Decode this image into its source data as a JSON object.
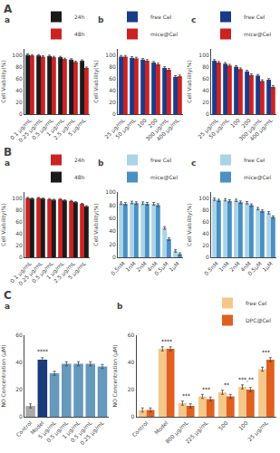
{
  "chart_data": [
    {
      "type": "bar",
      "title": "a",
      "subtitle": "A",
      "categories": [
        "0.1 µg/mL",
        "0.25 µg/mL",
        "0.5 µg/mL",
        "1 µg/mL",
        "2.5 µg/mL",
        "5 µg/mL"
      ],
      "series": [
        {
          "name": "24h",
          "color": "#1a1a1a",
          "values": [
            100,
            99,
            98,
            96,
            92,
            90
          ],
          "errors": [
            1.5,
            1.5,
            1.5,
            1.5,
            1.5,
            1.5
          ]
        },
        {
          "name": "48h",
          "color": "#cc2222",
          "values": [
            99,
            97,
            96,
            93,
            88,
            78
          ],
          "errors": [
            1.5,
            1.5,
            1.5,
            1.5,
            1.5,
            1.5
          ]
        }
      ],
      "ylabel": "Cell Viability(%)",
      "ylim": [
        0,
        110
      ],
      "yticks": [
        0,
        20,
        40,
        60,
        80,
        100
      ],
      "grid": false,
      "legend": "upper right"
    },
    {
      "type": "bar",
      "title": "b",
      "categories": [
        "25 µg/mL",
        "50 µg/mL",
        "100",
        "200",
        "300 µg/mL",
        "400 µg/mL"
      ],
      "series": [
        {
          "name": "free Cel",
          "color": "#1a3a8a",
          "values": [
            97,
            95,
            92,
            87,
            78,
            63
          ],
          "errors": [
            2,
            2,
            2,
            2,
            2,
            2
          ]
        },
        {
          "name": "mice@Cel",
          "color": "#cc2222",
          "values": [
            97,
            94,
            90,
            84,
            75,
            64
          ],
          "errors": [
            2,
            2,
            2,
            2,
            2,
            2
          ]
        }
      ],
      "ylabel": "Cell Viability(%)",
      "ylim": [
        0,
        110
      ],
      "yticks": [
        0,
        20,
        40,
        60,
        80,
        100
      ],
      "grid": false,
      "legend": "upper right"
    },
    {
      "type": "bar",
      "title": "c",
      "categories": [
        "25 µg/mL",
        "50 µg/mL",
        "100",
        "200",
        "300 µg/mL",
        "400 µg/mL"
      ],
      "series": [
        {
          "name": "free Cel",
          "color": "#1a3a8a",
          "values": [
            90,
            85,
            80,
            72,
            65,
            58
          ],
          "errors": [
            2,
            2,
            2,
            2,
            2,
            2
          ]
        },
        {
          "name": "mice@Cel",
          "color": "#cc2222",
          "values": [
            87,
            82,
            76,
            66,
            56,
            46
          ],
          "errors": [
            2,
            2,
            2,
            2,
            2,
            2
          ]
        }
      ],
      "ylabel": "Cell Viability(%)",
      "ylim": [
        0,
        110
      ],
      "yticks": [
        0,
        20,
        40,
        60,
        80,
        100
      ],
      "grid": false,
      "legend": "upper right"
    },
    {
      "type": "bar",
      "title": "a",
      "subtitle": "B",
      "categories": [
        "0.1 µg/mL",
        "0.25 µg/mL",
        "0.5 µg/mL",
        "1 µg/mL",
        "2.5 µg/mL",
        "5 µg/mL"
      ],
      "series": [
        {
          "name": "24h",
          "color": "#cc2222",
          "values": [
            100,
            100,
            98,
            98,
            95,
            90
          ],
          "errors": [
            1,
            1,
            1,
            1,
            1,
            1
          ]
        },
        {
          "name": "48h",
          "color": "#1a1a1a",
          "values": [
            99,
            99,
            97,
            96,
            93,
            86
          ],
          "errors": [
            1,
            1,
            1,
            1,
            1,
            1
          ]
        }
      ],
      "ylabel": "Cell Viability(%)",
      "ylim": [
        0,
        110
      ],
      "yticks": [
        0,
        20,
        40,
        60,
        80,
        100
      ],
      "grid": false,
      "legend": "upper right"
    },
    {
      "type": "bar",
      "title": "b",
      "categories": [
        "0.5nM",
        "1nM",
        "2nM",
        "4nM",
        "0.5µM",
        "1µM"
      ],
      "series": [
        {
          "name": "free Cel",
          "color": "#aad4e8",
          "values": [
            83,
            84,
            83,
            82,
            45,
            10
          ],
          "errors": [
            2,
            2,
            2,
            2,
            2,
            2
          ]
        },
        {
          "name": "mice@Cel",
          "color": "#4a90c4",
          "values": [
            82,
            83,
            82,
            80,
            28,
            5
          ],
          "errors": [
            2,
            2,
            2,
            2,
            2,
            2
          ]
        }
      ],
      "ylabel": "Cell Viability(%)",
      "ylim": [
        0,
        100
      ],
      "yticks": [
        0,
        20,
        40,
        60,
        80,
        100
      ],
      "grid": false,
      "legend": "upper right"
    },
    {
      "type": "bar",
      "title": "c",
      "categories": [
        "0.5nM",
        "1nM",
        "2nM",
        "4nM",
        "0.5µM",
        "1µM"
      ],
      "series": [
        {
          "name": "free Cel",
          "color": "#aad4e8",
          "values": [
            98,
            97,
            96,
            92,
            82,
            75
          ],
          "errors": [
            2,
            2,
            2,
            2,
            2,
            2
          ]
        },
        {
          "name": "mice@Cel",
          "color": "#4a90c4",
          "values": [
            96,
            95,
            93,
            88,
            78,
            68
          ],
          "errors": [
            2,
            2,
            2,
            2,
            2,
            2
          ]
        }
      ],
      "ylabel": "Cell Viability(%)",
      "ylim": [
        0,
        110
      ],
      "yticks": [
        0,
        20,
        40,
        60,
        80,
        100
      ],
      "grid": false,
      "legend": "upper right"
    },
    {
      "type": "bar",
      "title": "a",
      "subtitle": "C",
      "categories": [
        "Control",
        "Model",
        "5 µg/mL",
        "0.5 µg/mL",
        "1 µg/mL",
        "0.5 µg/mL",
        "0.25 µg/mL"
      ],
      "values": [
        8,
        42,
        32,
        39,
        39,
        39,
        37
      ],
      "colors": [
        "#aaaaaa",
        "#1a3a7a",
        "#6699bb",
        "#6699bb",
        "#6699bb",
        "#6699bb",
        "#6699bb"
      ],
      "errors": [
        1.5,
        1.5,
        1.5,
        1.5,
        1.5,
        1.5,
        1.5
      ],
      "annotations": [
        {
          "x": 1,
          "y": 45,
          "text": "****"
        }
      ],
      "ylabel": "NO Concentration (µM)",
      "ylim": [
        0,
        60
      ],
      "yticks": [
        0,
        20,
        40,
        60
      ],
      "grid": false
    },
    {
      "type": "bar",
      "title": "b",
      "categories": [
        "Control",
        "Model",
        "800 µg/mL",
        "225 µg/mL",
        "500",
        "100",
        "25 µg/mL"
      ],
      "series": [
        {
          "name": "free Cel",
          "color": "#f5c88a",
          "values": [
            5,
            50,
            10,
            15,
            18,
            22,
            35
          ],
          "errors": [
            1.5,
            1.5,
            1.5,
            1.5,
            1.5,
            1.5,
            1.5
          ]
        },
        {
          "name": "DPC@Cel",
          "color": "#e06020",
          "values": [
            5,
            50,
            8,
            13,
            15,
            20,
            42
          ],
          "errors": [
            1.5,
            1.5,
            1.5,
            1.5,
            1.5,
            1.5,
            1.5
          ]
        }
      ],
      "annotations": [
        {
          "x": 1,
          "y": 52,
          "text": "****"
        },
        {
          "x": 2,
          "y": 12,
          "text": "***"
        },
        {
          "x": 3,
          "y": 17,
          "text": "***"
        },
        {
          "x": 4,
          "y": 20,
          "text": "**"
        },
        {
          "x": 5,
          "y": 24,
          "text": "***,**"
        },
        {
          "x": 6,
          "y": 44,
          "text": "***"
        }
      ],
      "ylabel": "NO Concentration (µM)",
      "ylim": [
        0,
        60
      ],
      "yticks": [
        0,
        20,
        40,
        60
      ],
      "grid": false,
      "legend": "upper right"
    }
  ]
}
